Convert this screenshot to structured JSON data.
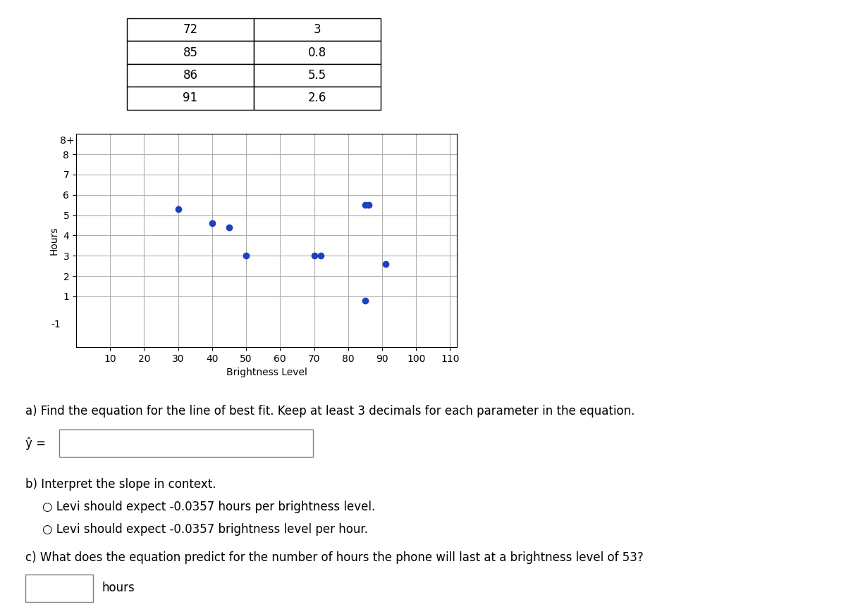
{
  "chart_data": {
    "type": "scatter",
    "x": [
      30,
      40,
      45,
      50,
      70,
      85,
      85,
      91,
      72,
      86
    ],
    "values": [
      5.3,
      4.6,
      4.4,
      3.0,
      3.0,
      5.5,
      0.8,
      2.6,
      3.0,
      5.5
    ],
    "color": "#2040c0",
    "xlabel": "Brightness Level",
    "ylabel": "Hours",
    "xlim": [
      0,
      112
    ],
    "ylim": [
      -1.5,
      9
    ],
    "xticks": [
      10,
      20,
      30,
      40,
      50,
      60,
      70,
      80,
      90,
      100,
      110
    ],
    "yticks": [
      1,
      2,
      3,
      4,
      5,
      6,
      7,
      8
    ],
    "grid": true,
    "annotations": [
      {
        "text": "-1",
        "x": -4,
        "y": -1
      },
      {
        "text": "8+",
        "x": 0,
        "y": 8.05
      }
    ],
    "table": [
      [
        72,
        3
      ],
      [
        85,
        0.8
      ],
      [
        86,
        5.5
      ],
      [
        91,
        2.6
      ]
    ],
    "question_a": "a) Find the equation for the line of best fit. Keep at least 3 decimals for each parameter in the equation.",
    "answer_label": "ŷ =",
    "question_b": "b) Interpret the slope in context.",
    "options": [
      "○ Levi should expect -0.0357 hours per brightness level.",
      "○ Levi should expect -0.0357 brightness level per hour."
    ],
    "question_c": "c) What does the equation predict for the number of hours the phone will last at a brightness level of 53?",
    "unit_label": "hours"
  }
}
